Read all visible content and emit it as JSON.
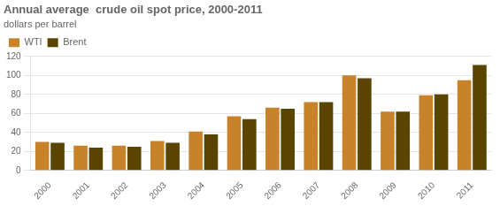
{
  "chart_data": {
    "type": "bar",
    "title": "Annual average  crude oil spot price, 2000-2011",
    "subtitle": "dollars per barrel",
    "categories": [
      "2000",
      "2001",
      "2002",
      "2003",
      "2004",
      "2005",
      "2006",
      "2007",
      "2008",
      "2009",
      "2010",
      "2011"
    ],
    "series": [
      {
        "name": "WTI",
        "color": "#C8822A",
        "values": [
          30,
          26,
          26,
          31,
          41,
          57,
          66,
          72,
          100,
          62,
          79,
          95
        ]
      },
      {
        "name": "Brent",
        "color": "#5A4500",
        "values": [
          29,
          24,
          25,
          29,
          38,
          54,
          65,
          72,
          97,
          62,
          80,
          111
        ]
      }
    ],
    "ylim": [
      0,
      120
    ],
    "yticks": [
      0,
      20,
      40,
      60,
      80,
      100,
      120
    ],
    "grid": true,
    "legend": "upper left"
  }
}
